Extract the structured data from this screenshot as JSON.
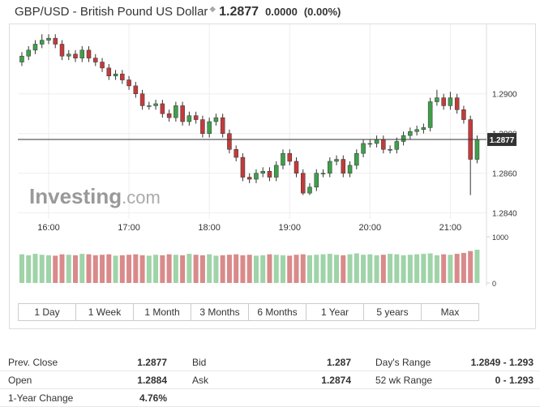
{
  "header": {
    "title": "GBP/USD - British Pound US Dollar",
    "price": "1.2877",
    "change": "0.0000",
    "change_percent": "(0.00%)"
  },
  "chart_data": {
    "type": "candlestick",
    "x": [
      940,
      945,
      950,
      955,
      960,
      965,
      970,
      975,
      980,
      985,
      990,
      995,
      1000,
      1005,
      1010,
      1015,
      1020,
      1025,
      1030,
      1035,
      1040,
      1045,
      1050,
      1055,
      1060,
      1065,
      1070,
      1075,
      1080,
      1085,
      1090,
      1095,
      1100,
      1105,
      1110,
      1115,
      1120,
      1125,
      1130,
      1135,
      1140,
      1145,
      1150,
      1155,
      1160,
      1165,
      1170,
      1175,
      1180,
      1185,
      1190,
      1195,
      1200,
      1205,
      1210,
      1215,
      1220,
      1225,
      1230,
      1235,
      1240,
      1245,
      1250,
      1255,
      1260,
      1265,
      1270,
      1275,
      1280
    ],
    "open": [
      1.2916,
      1.2919,
      1.2922,
      1.2925,
      1.2927,
      1.2928,
      1.2925,
      1.2919,
      1.292,
      1.2918,
      1.2922,
      1.2918,
      1.2916,
      1.2913,
      1.2909,
      1.291,
      1.2907,
      1.2904,
      1.29,
      1.2894,
      1.2894,
      1.2895,
      1.289,
      1.2888,
      1.2894,
      1.2886,
      1.2889,
      1.2887,
      1.288,
      1.2886,
      1.2888,
      1.288,
      1.2872,
      1.2868,
      1.2858,
      1.2857,
      1.286,
      1.2861,
      1.2858,
      1.2864,
      1.287,
      1.2866,
      1.286,
      1.285,
      1.2853,
      1.286,
      1.286,
      1.2866,
      1.2867,
      1.286,
      1.2864,
      1.287,
      1.2875,
      1.2875,
      1.2877,
      1.2872,
      1.2872,
      1.2876,
      1.2879,
      1.2881,
      1.2882,
      1.2883,
      1.2896,
      1.2898,
      1.2894,
      1.2898,
      1.2892,
      1.2887,
      1.2867
    ],
    "high": [
      1.2921,
      1.2924,
      1.2927,
      1.293,
      1.293,
      1.293,
      1.2927,
      1.2922,
      1.2922,
      1.2924,
      1.2924,
      1.292,
      1.2918,
      1.2915,
      1.2912,
      1.2912,
      1.2909,
      1.2906,
      1.2902,
      1.2896,
      1.2897,
      1.2897,
      1.2892,
      1.2896,
      1.2896,
      1.2891,
      1.2891,
      1.2889,
      1.2888,
      1.289,
      1.289,
      1.2882,
      1.2874,
      1.287,
      1.286,
      1.2862,
      1.2863,
      1.2863,
      1.2866,
      1.2872,
      1.2872,
      1.2868,
      1.2862,
      1.2855,
      1.2862,
      1.2862,
      1.2868,
      1.2869,
      1.2869,
      1.2866,
      1.2872,
      1.2877,
      1.2877,
      1.2879,
      1.2879,
      1.2874,
      1.2878,
      1.2881,
      1.2883,
      1.2884,
      1.2885,
      1.2898,
      1.2902,
      1.29,
      1.2901,
      1.29,
      1.2894,
      1.2889,
      1.2879
    ],
    "low": [
      1.2914,
      1.2917,
      1.292,
      1.2923,
      1.2925,
      1.2923,
      1.2917,
      1.2917,
      1.2916,
      1.2916,
      1.2916,
      1.2914,
      1.2911,
      1.2907,
      1.2907,
      1.2905,
      1.2902,
      1.2898,
      1.2892,
      1.2892,
      1.2892,
      1.2888,
      1.2886,
      1.2886,
      1.2884,
      1.2884,
      1.2885,
      1.2878,
      1.2878,
      1.2884,
      1.2878,
      1.287,
      1.2866,
      1.2856,
      1.2855,
      1.2855,
      1.2858,
      1.2856,
      1.2856,
      1.2862,
      1.2864,
      1.2858,
      1.2849,
      1.2849,
      1.2851,
      1.2858,
      1.2858,
      1.2864,
      1.2858,
      1.2858,
      1.2862,
      1.2868,
      1.2873,
      1.2873,
      1.287,
      1.287,
      1.287,
      1.2874,
      1.2877,
      1.2879,
      1.288,
      1.2881,
      1.2894,
      1.2892,
      1.2892,
      1.289,
      1.2885,
      1.2849,
      1.2865
    ],
    "close": [
      1.2919,
      1.2922,
      1.2925,
      1.2927,
      1.2928,
      1.2925,
      1.2919,
      1.292,
      1.2918,
      1.2922,
      1.2918,
      1.2916,
      1.2913,
      1.2909,
      1.291,
      1.2907,
      1.2904,
      1.29,
      1.2894,
      1.2894,
      1.2895,
      1.289,
      1.2888,
      1.2894,
      1.2886,
      1.2889,
      1.2887,
      1.288,
      1.2886,
      1.2888,
      1.288,
      1.2872,
      1.2868,
      1.2858,
      1.2857,
      1.286,
      1.2861,
      1.2858,
      1.2864,
      1.287,
      1.2866,
      1.286,
      1.285,
      1.2853,
      1.286,
      1.286,
      1.2866,
      1.2867,
      1.286,
      1.2864,
      1.287,
      1.2875,
      1.2875,
      1.2877,
      1.2872,
      1.2872,
      1.2876,
      1.2879,
      1.2881,
      1.2882,
      1.2883,
      1.2896,
      1.2898,
      1.2894,
      1.2898,
      1.2892,
      1.2887,
      1.2867,
      1.2877
    ],
    "volume": [
      620,
      600,
      630,
      610,
      600,
      590,
      620,
      610,
      600,
      630,
      620,
      600,
      610,
      620,
      590,
      600,
      610,
      620,
      600,
      590,
      610,
      600,
      620,
      610,
      600,
      630,
      610,
      600,
      620,
      590,
      600,
      610,
      620,
      600,
      610,
      590,
      600,
      620,
      610,
      600,
      590,
      610,
      620,
      600,
      610,
      620,
      630,
      610,
      600,
      620,
      640,
      610,
      620,
      600,
      610,
      630,
      620,
      600,
      610,
      620,
      630,
      640,
      600,
      620,
      610,
      630,
      650,
      690,
      720
    ],
    "up_color": "#3f9f4a",
    "down_color": "#c23b3b",
    "volume_up_color": "#9fd3a8",
    "volume_down_color": "#d98a8a",
    "xlim": [
      937,
      1287
    ],
    "xticks": [
      {
        "value": 960,
        "label": "16:00"
      },
      {
        "value": 1020,
        "label": "17:00"
      },
      {
        "value": 1080,
        "label": "18:00"
      },
      {
        "value": 1140,
        "label": "19:00"
      },
      {
        "value": 1200,
        "label": "20:00"
      },
      {
        "value": 1260,
        "label": "21:00"
      }
    ],
    "ylim": [
      1.2837,
      1.2935
    ],
    "yticks": [
      {
        "value": 1.29,
        "label": "1.2900"
      },
      {
        "value": 1.288,
        "label": "1.2880"
      },
      {
        "value": 1.286,
        "label": "1.2860"
      },
      {
        "value": 1.284,
        "label": "1.2840"
      }
    ],
    "y2lim": [
      0,
      1000
    ],
    "y2ticks": [
      0,
      1000
    ],
    "last_price": 1.2877,
    "grid": true,
    "watermark": {
      "brand": "Investing",
      "suffix": ".com"
    }
  },
  "ranges": [
    "1 Day",
    "1 Week",
    "1 Month",
    "3 Months",
    "6 Months",
    "1 Year",
    "5 years",
    "Max"
  ],
  "stats": {
    "rows": [
      [
        "Prev. Close",
        "1.2877",
        "Bid",
        "1.287",
        "Day's Range",
        "1.2849 - 1.293"
      ],
      [
        "Open",
        "1.2884",
        "Ask",
        "1.2874",
        "52 wk Range",
        "0 - 1.293"
      ],
      [
        "1-Year Change",
        "4.76%"
      ]
    ]
  }
}
